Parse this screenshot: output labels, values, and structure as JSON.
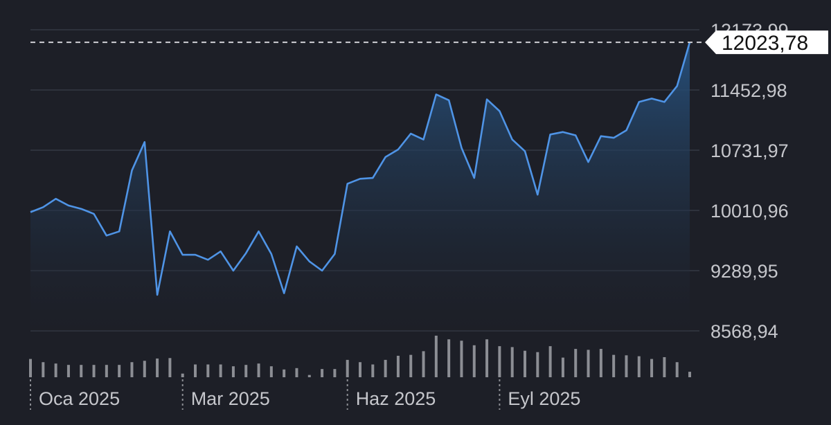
{
  "colors": {
    "background": "#1d1f27",
    "line": "#4f94e6",
    "area_top": "#27527f",
    "area_bottom": "#1d1f27",
    "grid": "#2e323c",
    "volume_bar": "#8c8e94",
    "text": "#c6c7cc",
    "tag_bg": "#ffffff"
  },
  "chart_data": {
    "type": "area",
    "ylim": [
      8568.94,
      12173.99
    ],
    "y_ticks": [
      "12173,99",
      "11452,98",
      "10731,97",
      "10010,96",
      "9289,95",
      "8568,94"
    ],
    "y_tick_values": [
      12173.99,
      11452.98,
      10731.97,
      10010.96,
      9289.95,
      8568.94
    ],
    "x_labels": [
      "Oca 2025",
      "Mar 2025",
      "Haz 2025",
      "Eyl 2025"
    ],
    "x_label_index": [
      0,
      12,
      25,
      37
    ],
    "current_value": 12023.78,
    "current_label": "12023,78",
    "grid": true,
    "series": [
      {
        "values": [
          9990,
          10050,
          10150,
          10070,
          10030,
          9970,
          9710,
          9760,
          10490,
          10830,
          9000,
          9760,
          9480,
          9480,
          9420,
          9520,
          9290,
          9500,
          9760,
          9490,
          9020,
          9580,
          9400,
          9290,
          9490,
          10330,
          10390,
          10400,
          10650,
          10740,
          10930,
          10860,
          11400,
          11330,
          10760,
          10400,
          11340,
          11200,
          10860,
          10720,
          10200,
          10920,
          10950,
          10910,
          10590,
          10900,
          10880,
          10970,
          11310,
          11350,
          11310,
          11500,
          12023.78
        ]
      }
    ],
    "volume": [
      4.0,
      3.3,
      3.0,
      2.7,
      2.7,
      2.7,
      2.7,
      2.7,
      3.3,
      3.6,
      4.1,
      4.2,
      0.8,
      2.8,
      2.8,
      2.8,
      2.4,
      2.7,
      3.0,
      2.4,
      1.7,
      2.0,
      0.5,
      1.8,
      1.8,
      3.8,
      3.3,
      2.8,
      3.8,
      4.7,
      4.9,
      5.7,
      9.1,
      8.3,
      8.0,
      7.0,
      8.3,
      6.8,
      6.6,
      5.8,
      5.5,
      6.8,
      4.3,
      6.2,
      6.0,
      6.2,
      4.9,
      4.8,
      4.6,
      4.0,
      4.4,
      3.3,
      1.2
    ]
  }
}
